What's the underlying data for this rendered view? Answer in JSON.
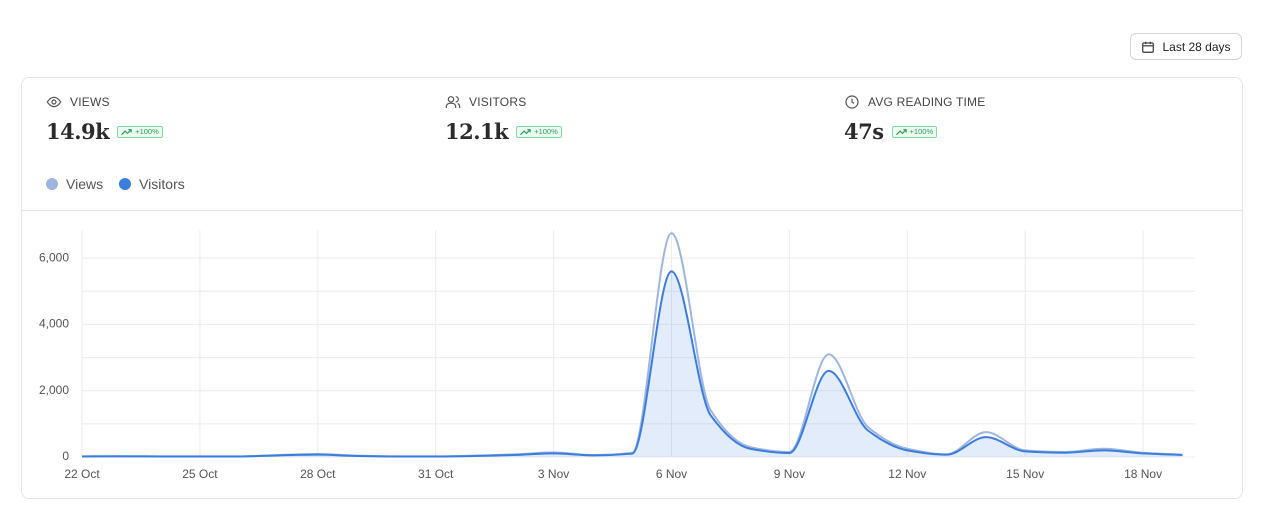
{
  "button": {
    "label": "Last 28 days"
  },
  "stats": [
    {
      "label": "VIEWS",
      "value": "14.9k",
      "change": "+100%"
    },
    {
      "label": "VISITORS",
      "value": "12.1k",
      "change": "+100%"
    },
    {
      "label": "AVG READING TIME",
      "value": "47s",
      "change": "+100%"
    }
  ],
  "chart_data": {
    "type": "line",
    "categories": [
      "22 Oct",
      null,
      null,
      "25 Oct",
      null,
      null,
      "28 Oct",
      null,
      null,
      "31 Oct",
      null,
      null,
      "3 Nov",
      null,
      null,
      "6 Nov",
      null,
      null,
      "9 Nov",
      null,
      null,
      "12 Nov",
      null,
      null,
      "15 Nov",
      null,
      null,
      "18 Nov",
      null
    ],
    "series": [
      {
        "name": "Views",
        "color": "#9fb5df",
        "values": [
          20,
          25,
          20,
          20,
          20,
          60,
          90,
          40,
          20,
          20,
          40,
          80,
          140,
          60,
          130,
          6750,
          1400,
          300,
          150,
          3100,
          900,
          250,
          80,
          750,
          200,
          150,
          250,
          130,
          70
        ]
      },
      {
        "name": "Visitors",
        "color": "#3b7ddd",
        "area": true,
        "values": [
          15,
          20,
          15,
          15,
          15,
          50,
          70,
          30,
          15,
          15,
          30,
          60,
          110,
          50,
          100,
          5600,
          1250,
          250,
          120,
          2600,
          800,
          200,
          70,
          600,
          170,
          130,
          200,
          110,
          60
        ]
      }
    ],
    "ylim": [
      0,
      7000
    ],
    "yticks": [
      0,
      {
        "value": 2000,
        "label": "2,000"
      },
      {
        "value": 4000,
        "label": "4,000"
      },
      {
        "value": 6000,
        "label": "6,000"
      }
    ],
    "ygrid_minor": [
      1000,
      3000,
      5000
    ],
    "grid": true
  }
}
